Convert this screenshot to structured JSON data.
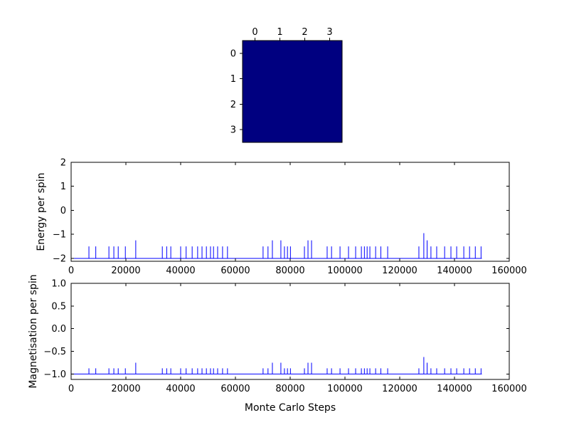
{
  "chart_data": [
    {
      "id": "lattice",
      "type": "heatmap",
      "description": "4x4 Ising lattice, all spins in the same (down) state, uniform dark blue",
      "x_tick_labels": [
        "0",
        "1",
        "2",
        "3"
      ],
      "y_tick_labels": [
        "0",
        "1",
        "2",
        "3"
      ],
      "values": [
        [
          -1,
          -1,
          -1,
          -1
        ],
        [
          -1,
          -1,
          -1,
          -1
        ],
        [
          -1,
          -1,
          -1,
          -1
        ],
        [
          -1,
          -1,
          -1,
          -1
        ]
      ],
      "cell_color": "#000080"
    },
    {
      "id": "energy",
      "type": "line",
      "ylabel": "Energy per spin",
      "xlabel": "",
      "line_color": "#0000ff",
      "xlim": [
        0,
        160000
      ],
      "ylim": [
        -2,
        2
      ],
      "x_ticks": [
        0,
        20000,
        40000,
        60000,
        80000,
        100000,
        120000,
        140000,
        160000
      ],
      "x_tick_labels": [
        "0",
        "20000",
        "40000",
        "60000",
        "80000",
        "100000",
        "120000",
        "140000",
        "160000"
      ],
      "y_ticks": [
        -2,
        -1,
        0,
        1,
        2
      ],
      "y_tick_labels": [
        "−2",
        "−1",
        "0",
        "1",
        "2"
      ],
      "baseline": -2,
      "x_start": 0,
      "x_end": 150000,
      "spikes": [
        [
          6500,
          -1.5
        ],
        [
          9000,
          -1.5
        ],
        [
          13800,
          -1.5
        ],
        [
          15600,
          -1.5
        ],
        [
          17200,
          -1.5
        ],
        [
          19800,
          -1.5
        ],
        [
          23600,
          -1.25
        ],
        [
          33300,
          -1.5
        ],
        [
          34900,
          -1.5
        ],
        [
          36400,
          -1.5
        ],
        [
          40000,
          -1.5
        ],
        [
          42000,
          -1.5
        ],
        [
          44200,
          -1.5
        ],
        [
          46200,
          -1.5
        ],
        [
          47800,
          -1.5
        ],
        [
          49400,
          -1.5
        ],
        [
          50900,
          -1.5
        ],
        [
          52000,
          -1.5
        ],
        [
          53500,
          -1.5
        ],
        [
          55300,
          -1.5
        ],
        [
          57100,
          -1.5
        ],
        [
          70100,
          -1.5
        ],
        [
          71900,
          -1.5
        ],
        [
          73500,
          -1.25
        ],
        [
          76600,
          -1.25
        ],
        [
          77900,
          -1.5
        ],
        [
          79000,
          -1.5
        ],
        [
          80100,
          -1.5
        ],
        [
          85200,
          -1.5
        ],
        [
          86500,
          -1.25
        ],
        [
          87800,
          -1.25
        ],
        [
          93500,
          -1.5
        ],
        [
          95100,
          -1.5
        ],
        [
          98200,
          -1.5
        ],
        [
          101300,
          -1.5
        ],
        [
          103900,
          -1.5
        ],
        [
          106000,
          -1.5
        ],
        [
          107100,
          -1.5
        ],
        [
          108100,
          -1.5
        ],
        [
          109100,
          -1.5
        ],
        [
          111200,
          -1.5
        ],
        [
          113100,
          -1.5
        ],
        [
          115600,
          -1.5
        ],
        [
          127000,
          -1.5
        ],
        [
          128800,
          -0.95
        ],
        [
          130000,
          -1.25
        ],
        [
          131400,
          -1.5
        ],
        [
          133500,
          -1.5
        ],
        [
          136400,
          -1.5
        ],
        [
          138700,
          -1.5
        ],
        [
          140800,
          -1.5
        ],
        [
          143400,
          -1.5
        ],
        [
          145500,
          -1.5
        ],
        [
          147600,
          -1.5
        ],
        [
          149700,
          -1.5
        ]
      ]
    },
    {
      "id": "magnetisation",
      "type": "line",
      "ylabel": "Magnetisation per spin",
      "xlabel": "Monte Carlo Steps",
      "line_color": "#0000ff",
      "xlim": [
        0,
        160000
      ],
      "ylim": [
        -1,
        1
      ],
      "x_ticks": [
        0,
        20000,
        40000,
        60000,
        80000,
        100000,
        120000,
        140000,
        160000
      ],
      "x_tick_labels": [
        "0",
        "20000",
        "40000",
        "60000",
        "80000",
        "100000",
        "120000",
        "140000",
        "160000"
      ],
      "y_ticks": [
        -1.0,
        -0.5,
        0.0,
        0.5,
        1.0
      ],
      "y_tick_labels": [
        "−1.0",
        "−0.5",
        "0.0",
        "0.5",
        "1.0"
      ],
      "baseline": -1,
      "x_start": 0,
      "x_end": 150000,
      "spikes": [
        [
          6500,
          -0.875
        ],
        [
          9000,
          -0.875
        ],
        [
          13800,
          -0.875
        ],
        [
          15600,
          -0.875
        ],
        [
          17200,
          -0.875
        ],
        [
          19800,
          -0.875
        ],
        [
          23600,
          -0.75
        ],
        [
          33300,
          -0.875
        ],
        [
          34900,
          -0.875
        ],
        [
          36400,
          -0.875
        ],
        [
          40000,
          -0.875
        ],
        [
          42000,
          -0.875
        ],
        [
          44200,
          -0.875
        ],
        [
          46200,
          -0.875
        ],
        [
          47800,
          -0.875
        ],
        [
          49400,
          -0.875
        ],
        [
          50900,
          -0.875
        ],
        [
          52000,
          -0.875
        ],
        [
          53500,
          -0.875
        ],
        [
          55300,
          -0.875
        ],
        [
          57100,
          -0.875
        ],
        [
          70100,
          -0.875
        ],
        [
          71900,
          -0.875
        ],
        [
          73500,
          -0.75
        ],
        [
          76600,
          -0.75
        ],
        [
          77900,
          -0.875
        ],
        [
          79000,
          -0.875
        ],
        [
          80100,
          -0.875
        ],
        [
          85200,
          -0.875
        ],
        [
          86500,
          -0.75
        ],
        [
          87800,
          -0.75
        ],
        [
          93500,
          -0.875
        ],
        [
          95100,
          -0.875
        ],
        [
          98200,
          -0.875
        ],
        [
          101300,
          -0.875
        ],
        [
          103900,
          -0.875
        ],
        [
          106000,
          -0.875
        ],
        [
          107100,
          -0.875
        ],
        [
          108100,
          -0.875
        ],
        [
          109100,
          -0.875
        ],
        [
          111200,
          -0.875
        ],
        [
          113100,
          -0.875
        ],
        [
          115600,
          -0.875
        ],
        [
          127000,
          -0.875
        ],
        [
          128800,
          -0.625
        ],
        [
          130000,
          -0.75
        ],
        [
          131400,
          -0.875
        ],
        [
          133500,
          -0.875
        ],
        [
          136400,
          -0.875
        ],
        [
          138700,
          -0.875
        ],
        [
          140800,
          -0.875
        ],
        [
          143400,
          -0.875
        ],
        [
          145500,
          -0.875
        ],
        [
          147600,
          -0.875
        ],
        [
          149700,
          -0.875
        ]
      ]
    }
  ]
}
